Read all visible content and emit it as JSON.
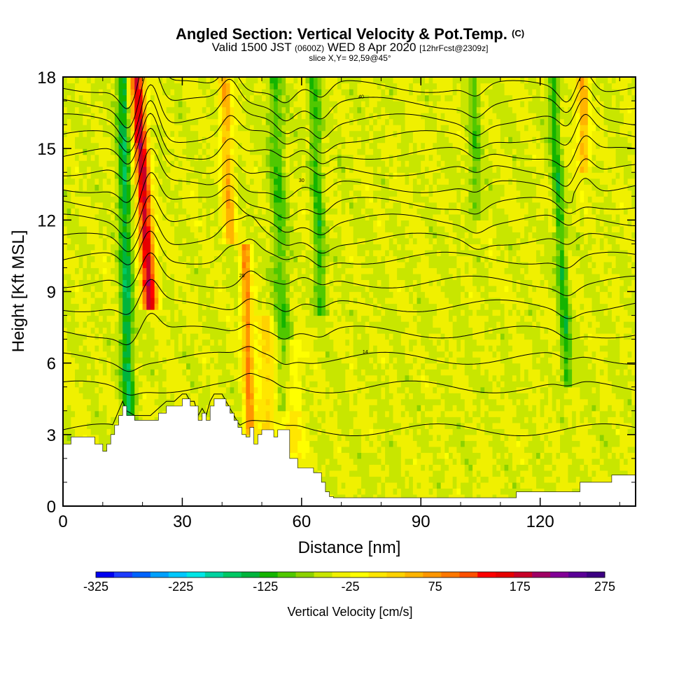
{
  "header": {
    "title_main": "Angled Section: Vertical Velocity & Pot.Temp.",
    "title_unit": "(C)",
    "valid_prefix": "Valid 1500 JST",
    "valid_utc": "(0600Z)",
    "valid_date": "WED 8 Apr 2020",
    "forecast": "[12hrFcst@2309z]",
    "slice": "slice X,Y= 92,59@45°"
  },
  "chart_data": {
    "type": "heatmap",
    "xlabel": "Distance [nm]",
    "ylabel": "Height [Kft MSL]",
    "xlim": [
      0,
      144
    ],
    "ylim": [
      0,
      18
    ],
    "x_ticks": [
      0,
      30,
      60,
      90,
      120
    ],
    "y_ticks": [
      0,
      3,
      6,
      9,
      12,
      15,
      18
    ],
    "x_tick_labels": [
      "0",
      "30",
      "60",
      "90",
      "120"
    ],
    "y_tick_labels": [
      "0",
      "3",
      "6",
      "9",
      "12",
      "15",
      "18"
    ],
    "background_value": 0,
    "field_description": "Vertical velocity cells",
    "updrafts": [
      {
        "x": 22,
        "w": 1.8,
        "y0": 8.2,
        "y1": 18,
        "tilt": 0.35,
        "peak": 260
      },
      {
        "x": 16.5,
        "w": 1.6,
        "y0": 3.5,
        "y1": 18,
        "tilt": 0.1,
        "peak": -120
      },
      {
        "x": 47,
        "w": 1.3,
        "y0": 3.0,
        "y1": 11,
        "tilt": 0.15,
        "peak": 150
      },
      {
        "x": 42,
        "w": 1.5,
        "y0": 11,
        "y1": 18,
        "tilt": 0.2,
        "peak": 120
      },
      {
        "x": 56,
        "w": 2.0,
        "y0": 4,
        "y1": 18,
        "tilt": 0.2,
        "peak": -70
      },
      {
        "x": 65,
        "w": 1.5,
        "y0": 8,
        "y1": 18,
        "tilt": 0.2,
        "peak": -80
      },
      {
        "x": 104,
        "w": 1.5,
        "y0": 12,
        "y1": 18,
        "tilt": 0.1,
        "peak": -60
      },
      {
        "x": 127,
        "w": 1.3,
        "y0": 5,
        "y1": 18,
        "tilt": 0.3,
        "peak": -90
      },
      {
        "x": 131,
        "w": 1.5,
        "y0": 14,
        "y1": 18,
        "tilt": 0.1,
        "peak": 120
      },
      {
        "x": 52,
        "w": 2.5,
        "y0": 1,
        "y1": 8,
        "tilt": 0.2,
        "peak": 80
      },
      {
        "x": 58,
        "w": 2.5,
        "y0": 2,
        "y1": 7,
        "tilt": 0.1,
        "peak": 60
      }
    ],
    "terrain": {
      "x": [
        0,
        2,
        5,
        8,
        10,
        11,
        12,
        13,
        14,
        15,
        16,
        18,
        19,
        20,
        22,
        24,
        26,
        28,
        30,
        31,
        32,
        33,
        34,
        35,
        36,
        37,
        38,
        39,
        40,
        41,
        42,
        43,
        44,
        45,
        46,
        47,
        48,
        49,
        50,
        52,
        53,
        54,
        55,
        57,
        59,
        61,
        63,
        65,
        66,
        67,
        68,
        70,
        75,
        80,
        90,
        100,
        113,
        114,
        120,
        125,
        128,
        130,
        133,
        137,
        138,
        144
      ],
      "y": [
        2.6,
        2.9,
        2.9,
        2.6,
        2.3,
        2.6,
        3.0,
        3.4,
        3.8,
        4.2,
        3.8,
        3.6,
        3.6,
        3.6,
        3.6,
        3.9,
        4.2,
        4.2,
        4.5,
        4.5,
        4.2,
        4.2,
        3.6,
        3.9,
        3.6,
        4.2,
        4.5,
        4.5,
        4.5,
        4.2,
        3.9,
        3.6,
        3.3,
        3.0,
        2.9,
        3.3,
        2.6,
        3.0,
        3.2,
        3.2,
        2.9,
        3.2,
        3.2,
        2.0,
        1.6,
        1.6,
        1.4,
        1.0,
        0.6,
        0.4,
        0.35,
        0.35,
        0.35,
        0.35,
        0.35,
        0.35,
        0.35,
        0.6,
        0.6,
        0.6,
        0.6,
        1.0,
        1.0,
        1.0,
        1.3,
        1.3
      ]
    },
    "isentropes": [
      {
        "label": "",
        "base": 3.2
      },
      {
        "label": "",
        "base": 5.0
      },
      {
        "label": "14",
        "base": 6.2
      },
      {
        "label": "",
        "base": 7.3
      },
      {
        "label": "",
        "base": 8.4
      },
      {
        "label": "20",
        "base": 9.4
      },
      {
        "label": "",
        "base": 10.4
      },
      {
        "label": "",
        "base": 11.2
      },
      {
        "label": "",
        "base": 12.0
      },
      {
        "label": "",
        "base": 12.7
      },
      {
        "label": "30",
        "base": 13.4
      },
      {
        "label": "",
        "base": 14.1
      },
      {
        "label": "",
        "base": 14.8
      },
      {
        "label": "",
        "base": 15.5
      },
      {
        "label": "",
        "base": 16.2
      },
      {
        "label": "40",
        "base": 16.9
      },
      {
        "label": "",
        "base": 17.6
      }
    ]
  },
  "colorbar": {
    "label": "Vertical Velocity [cm/s]",
    "min": -325,
    "max": 275,
    "step": 25,
    "tick_labels": [
      "-325",
      "-225",
      "-125",
      "-25",
      "75",
      "175",
      "275"
    ],
    "colors": [
      "#0000f0",
      "#1e3cff",
      "#0064ff",
      "#00a0ff",
      "#00c8ff",
      "#00e6e6",
      "#00d2a0",
      "#00c864",
      "#00b43c",
      "#14b400",
      "#50c800",
      "#8cd200",
      "#c8e600",
      "#f0f000",
      "#ffff00",
      "#ffe600",
      "#ffd200",
      "#ffb400",
      "#ff9600",
      "#ff7800",
      "#ff5000",
      "#ff0000",
      "#e60000",
      "#c80028",
      "#a00064",
      "#820096",
      "#5a0096",
      "#3c0082"
    ]
  }
}
